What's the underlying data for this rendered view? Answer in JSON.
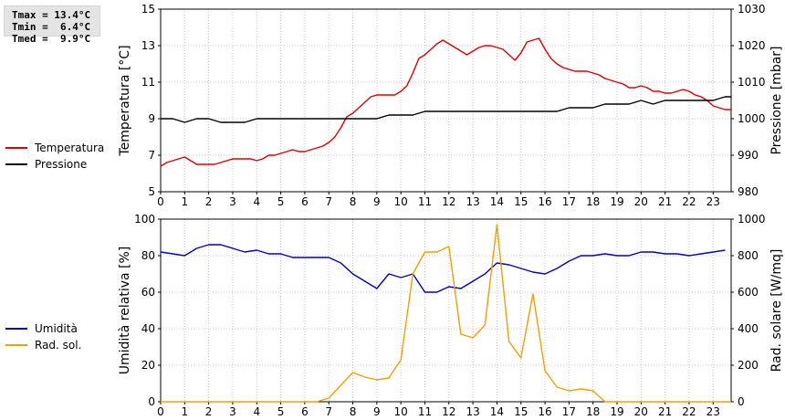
{
  "stats": {
    "tmax": "Tmax = 13.4°C",
    "tmin": "Tmin =  6.4°C",
    "tmed": "Tmed =  9.9°C"
  },
  "chart_data": [
    {
      "type": "line",
      "x_ticks": [
        0,
        1,
        2,
        3,
        4,
        5,
        6,
        7,
        8,
        9,
        10,
        11,
        12,
        13,
        14,
        15,
        16,
        17,
        18,
        19,
        20,
        21,
        22,
        23
      ],
      "xlim": [
        0,
        23.75
      ],
      "ylabel_left": "Temperatura [°C]",
      "ylim_left": [
        5,
        15
      ],
      "yticks_left": [
        5,
        7,
        9,
        11,
        13,
        15
      ],
      "ylabel_right": "Pressione [mbar]",
      "ylim_right": [
        980,
        1030
      ],
      "yticks_right": [
        980,
        990,
        1000,
        1010,
        1020,
        1030
      ],
      "grid": true,
      "legend_position": "left",
      "series": [
        {
          "name": "Temperatura",
          "axis": "left",
          "color": "#dd0000",
          "x": [
            0,
            0.25,
            0.5,
            0.75,
            1,
            1.25,
            1.5,
            1.75,
            2,
            2.25,
            2.5,
            2.75,
            3,
            3.25,
            3.5,
            3.75,
            4,
            4.25,
            4.5,
            4.75,
            5,
            5.25,
            5.5,
            5.75,
            6,
            6.25,
            6.5,
            6.75,
            7,
            7.25,
            7.5,
            7.75,
            8,
            8.25,
            8.5,
            8.75,
            9,
            9.25,
            9.5,
            9.75,
            10,
            10.25,
            10.5,
            10.75,
            11,
            11.25,
            11.5,
            11.75,
            12,
            12.25,
            12.5,
            12.75,
            13,
            13.25,
            13.5,
            13.75,
            14,
            14.25,
            14.5,
            14.75,
            15,
            15.25,
            15.5,
            15.75,
            16,
            16.25,
            16.5,
            16.75,
            17,
            17.25,
            17.5,
            17.75,
            18,
            18.25,
            18.5,
            18.75,
            19,
            19.25,
            19.5,
            19.75,
            20,
            20.25,
            20.5,
            20.75,
            21,
            21.25,
            21.5,
            21.75,
            22,
            22.25,
            22.5,
            22.75,
            23,
            23.25,
            23.5,
            23.75
          ],
          "y": [
            6.4,
            6.6,
            6.7,
            6.8,
            6.9,
            6.7,
            6.5,
            6.5,
            6.5,
            6.5,
            6.6,
            6.7,
            6.8,
            6.8,
            6.8,
            6.8,
            6.7,
            6.8,
            7.0,
            7.0,
            7.1,
            7.2,
            7.3,
            7.2,
            7.2,
            7.3,
            7.4,
            7.5,
            7.7,
            8.0,
            8.5,
            9.1,
            9.3,
            9.6,
            9.9,
            10.2,
            10.3,
            10.3,
            10.3,
            10.3,
            10.5,
            10.8,
            11.5,
            12.3,
            12.5,
            12.8,
            13.1,
            13.3,
            13.1,
            12.9,
            12.7,
            12.5,
            12.7,
            12.9,
            13.0,
            13.0,
            12.9,
            12.8,
            12.5,
            12.2,
            12.6,
            13.2,
            13.3,
            13.4,
            12.8,
            12.3,
            12.0,
            11.8,
            11.7,
            11.6,
            11.6,
            11.6,
            11.5,
            11.4,
            11.2,
            11.1,
            11.0,
            10.9,
            10.7,
            10.7,
            10.8,
            10.7,
            10.5,
            10.5,
            10.4,
            10.4,
            10.5,
            10.6,
            10.5,
            10.3,
            10.2,
            10.0,
            9.7,
            9.6,
            9.5,
            9.5
          ]
        },
        {
          "name": "Pressione",
          "axis": "right",
          "color": "#000000",
          "x": [
            0,
            0.5,
            1,
            1.5,
            2,
            2.5,
            3,
            3.5,
            4,
            4.5,
            5,
            5.5,
            6,
            6.5,
            7,
            7.5,
            8,
            8.5,
            9,
            9.5,
            10,
            10.5,
            11,
            11.5,
            12,
            12.5,
            13,
            13.5,
            14,
            14.5,
            15,
            15.5,
            16,
            16.5,
            17,
            17.5,
            18,
            18.5,
            19,
            19.5,
            20,
            20.5,
            21,
            21.5,
            22,
            22.5,
            23,
            23.5,
            23.75
          ],
          "y": [
            1000,
            1000,
            999,
            1000,
            1000,
            999,
            999,
            999,
            1000,
            1000,
            1000,
            1000,
            1000,
            1000,
            1000,
            1000,
            1000,
            1000,
            1000,
            1001,
            1001,
            1001,
            1002,
            1002,
            1002,
            1002,
            1002,
            1002,
            1002,
            1002,
            1002,
            1002,
            1002,
            1002,
            1003,
            1003,
            1003,
            1004,
            1004,
            1004,
            1005,
            1004,
            1005,
            1005,
            1005,
            1005,
            1005,
            1006,
            1006
          ]
        }
      ]
    },
    {
      "type": "line",
      "x_ticks": [
        0,
        1,
        2,
        3,
        4,
        5,
        6,
        7,
        8,
        9,
        10,
        11,
        12,
        13,
        14,
        15,
        16,
        17,
        18,
        19,
        20,
        21,
        22,
        23
      ],
      "xlim": [
        0,
        23.75
      ],
      "ylabel_left": "Umidità relativa [%]",
      "ylim_left": [
        0,
        100
      ],
      "yticks_left": [
        0,
        20,
        40,
        60,
        80,
        100
      ],
      "ylabel_right": "Rad. solare [W/mq]",
      "ylim_right": [
        0,
        1000
      ],
      "yticks_right": [
        0,
        200,
        400,
        600,
        800,
        1000
      ],
      "grid": true,
      "legend_position": "left",
      "series": [
        {
          "name": "Umidità",
          "axis": "left",
          "color": "#0000cc",
          "x": [
            0,
            0.5,
            1,
            1.5,
            2,
            2.5,
            3,
            3.5,
            4,
            4.5,
            5,
            5.5,
            6,
            6.5,
            7,
            7.5,
            8,
            8.5,
            9,
            9.5,
            10,
            10.5,
            11,
            11.5,
            12,
            12.5,
            13,
            13.5,
            14,
            14.5,
            15,
            15.5,
            16,
            16.5,
            17,
            17.5,
            18,
            18.5,
            19,
            19.5,
            20,
            20.5,
            21,
            21.5,
            22,
            22.5,
            23,
            23.5
          ],
          "y": [
            82,
            81,
            80,
            84,
            86,
            86,
            84,
            82,
            83,
            81,
            81,
            79,
            79,
            79,
            79,
            76,
            70,
            66,
            62,
            70,
            68,
            70,
            60,
            60,
            63,
            62,
            66,
            70,
            76,
            75,
            73,
            71,
            70,
            73,
            77,
            80,
            80,
            81,
            80,
            80,
            82,
            82,
            81,
            81,
            80,
            81,
            82,
            83
          ]
        },
        {
          "name": "Rad. sol.",
          "axis": "right",
          "color": "#f0a000",
          "x": [
            0,
            1,
            2,
            3,
            4,
            5,
            6,
            6.5,
            7,
            7.5,
            8,
            8.5,
            9,
            9.5,
            10,
            10.5,
            11,
            11.5,
            12,
            12.5,
            13,
            13.5,
            14,
            14.5,
            15,
            15.5,
            16,
            16.5,
            17,
            17.5,
            18,
            18.5,
            19,
            20,
            21,
            22,
            23,
            23.75
          ],
          "y": [
            0,
            0,
            0,
            0,
            0,
            0,
            0,
            0,
            20,
            90,
            160,
            135,
            120,
            130,
            230,
            700,
            820,
            820,
            850,
            370,
            350,
            420,
            970,
            330,
            240,
            590,
            170,
            80,
            60,
            70,
            60,
            0,
            0,
            0,
            0,
            0,
            0,
            0
          ]
        }
      ]
    }
  ]
}
